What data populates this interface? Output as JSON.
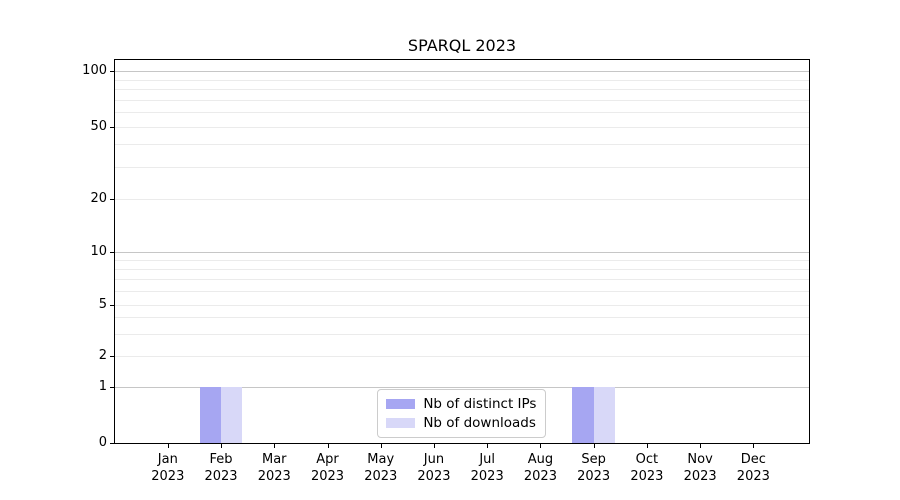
{
  "chart": {
    "title": "SPARQL 2023"
  },
  "chart_data": {
    "type": "bar",
    "title": "SPARQL 2023",
    "categories": [
      "Jan 2023",
      "Feb 2023",
      "Mar 2023",
      "Apr 2023",
      "May 2023",
      "Jun 2023",
      "Jul 2023",
      "Aug 2023",
      "Sep 2023",
      "Oct 2023",
      "Nov 2023",
      "Dec 2023"
    ],
    "months": [
      "Jan",
      "Feb",
      "Mar",
      "Apr",
      "May",
      "Jun",
      "Jul",
      "Aug",
      "Sep",
      "Oct",
      "Nov",
      "Dec"
    ],
    "year": "2023",
    "series": [
      {
        "name": "Nb of distinct IPs",
        "color": "#a6a6f2",
        "values": [
          0,
          1,
          0,
          0,
          0,
          0,
          0,
          0,
          1,
          0,
          0,
          0
        ]
      },
      {
        "name": "Nb of downloads",
        "color": "#d8d8f8",
        "values": [
          0,
          1,
          0,
          0,
          0,
          0,
          0,
          0,
          1,
          0,
          0,
          0
        ]
      }
    ],
    "xlabel": "",
    "ylabel": "",
    "ylim": [
      0,
      100
    ],
    "y_scale": "symlog",
    "y_ticks": [
      0,
      1,
      2,
      5,
      10,
      20,
      50,
      100
    ],
    "y_major_gridlines": [
      1,
      10,
      100
    ],
    "y_minor_gridlines": [
      2,
      3,
      4,
      5,
      6,
      7,
      8,
      9,
      20,
      30,
      40,
      50,
      60,
      70,
      80,
      90
    ],
    "grid": "horizontal only",
    "legend_position": "lower center inside plot"
  }
}
